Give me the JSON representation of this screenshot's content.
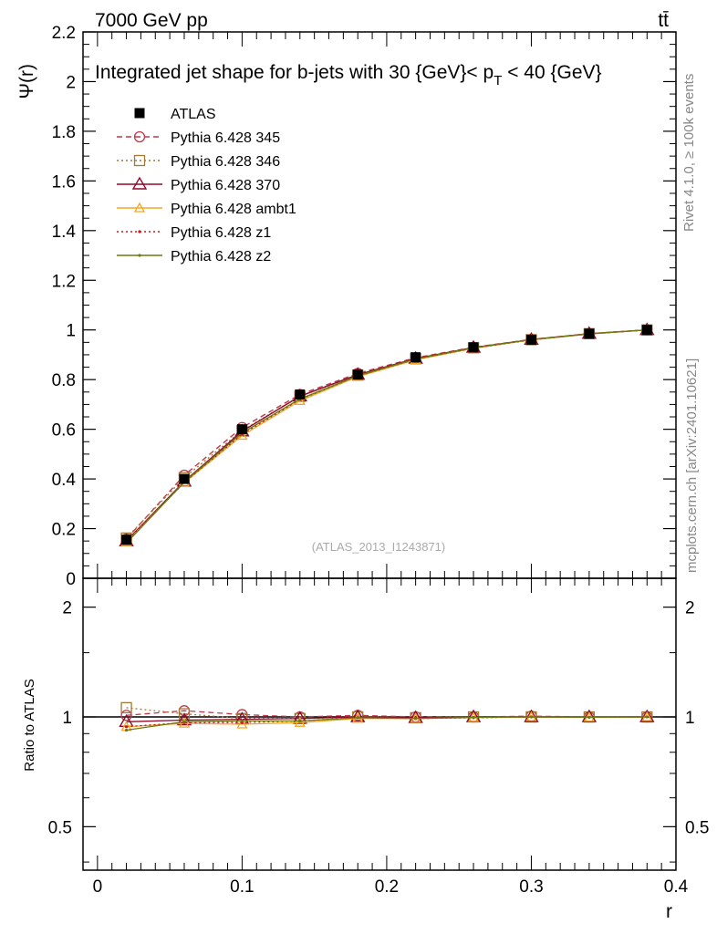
{
  "header": {
    "energy": "7000 GeV pp",
    "process": "tt̄",
    "side_top": "Rivet 4.1.0, ≥ 100k events",
    "side_bottom": "mcplots.cern.ch [arXiv:2401.10621]",
    "watermark": "(ATLAS_2013_I1243871)"
  },
  "colors": {
    "ATLAS": "#000000",
    "Pythia 6.428 345": "#c0394b",
    "Pythia 6.428 346": "#a07838",
    "Pythia 6.428 370": "#8b0a2a",
    "Pythia 6.428 ambt1": "#f5a623",
    "Pythia 6.428 z1": "#d0161c",
    "Pythia 6.428 z2": "#6b7a12"
  },
  "chart_data": [
    {
      "id": "main",
      "type": "line",
      "title": "Integrated jet shape for b-jets with 30 {GeV}< p_T < 40 {GeV}",
      "title_parts": {
        "pre": "Integrated jet shape for b-jets with 30 {GeV}< p",
        "sub": "T",
        "post": " < 40 {GeV}"
      },
      "ylabel": "Ψ(r)",
      "xlabel": "",
      "xlim": [
        -0.01,
        0.4
      ],
      "ylim": [
        0,
        2.2
      ],
      "yticks": [
        0,
        0.2,
        0.4,
        0.6,
        0.8,
        1,
        1.2,
        1.4,
        1.6,
        1.8,
        2,
        2.2
      ],
      "ytick_labels": [
        "0",
        "0.2",
        "0.4",
        "0.6",
        "0.8",
        "1",
        "1.2",
        "1.4",
        "1.6",
        "1.8",
        "2",
        "2.2"
      ],
      "x": [
        0.02,
        0.06,
        0.1,
        0.14,
        0.18,
        0.22,
        0.26,
        0.3,
        0.34,
        0.38
      ],
      "legend_position": "top-left",
      "series": [
        {
          "name": "ATLAS",
          "style": "data",
          "values": [
            0.155,
            0.4,
            0.6,
            0.74,
            0.82,
            0.89,
            0.93,
            0.96,
            0.985,
            1.0
          ]
        },
        {
          "name": "Pythia 6.428 345",
          "style": "dashed-circle",
          "values": [
            0.158,
            0.415,
            0.607,
            0.74,
            0.825,
            0.888,
            0.93,
            0.962,
            0.985,
            1.0
          ]
        },
        {
          "name": "Pythia 6.428 346",
          "style": "dotted-square",
          "values": [
            0.162,
            0.405,
            0.595,
            0.733,
            0.818,
            0.884,
            0.928,
            0.961,
            0.985,
            1.0
          ]
        },
        {
          "name": "Pythia 6.428 370",
          "style": "solid-triangle",
          "values": [
            0.15,
            0.39,
            0.592,
            0.733,
            0.82,
            0.885,
            0.929,
            0.961,
            0.985,
            1.0
          ]
        },
        {
          "name": "Pythia 6.428 ambt1",
          "style": "solid-triangle-open",
          "values": [
            0.146,
            0.385,
            0.575,
            0.715,
            0.812,
            0.88,
            0.926,
            0.96,
            0.984,
            1.0
          ]
        },
        {
          "name": "Pythia 6.428 z1",
          "style": "dotted-dot",
          "values": [
            0.146,
            0.386,
            0.58,
            0.72,
            0.815,
            0.882,
            0.927,
            0.96,
            0.984,
            1.0
          ]
        },
        {
          "name": "Pythia 6.428 z2",
          "style": "solid-dot",
          "values": [
            0.142,
            0.388,
            0.585,
            0.722,
            0.816,
            0.883,
            0.928,
            0.961,
            0.984,
            1.0
          ]
        }
      ]
    },
    {
      "id": "ratio",
      "type": "line",
      "title": "",
      "ylabel": "Ratio to ATLAS",
      "xlabel": "r",
      "xlim": [
        -0.01,
        0.4
      ],
      "ylim": [
        0.38,
        2.4
      ],
      "yscale": "log",
      "yticks": [
        0.5,
        1,
        2
      ],
      "ytick_labels": [
        "0.5",
        "1",
        "2"
      ],
      "xticks": [
        0,
        0.1,
        0.2,
        0.3,
        0.4
      ],
      "xtick_labels": [
        "0",
        "0.1",
        "0.2",
        "0.3",
        "0.4"
      ],
      "x": [
        0.02,
        0.06,
        0.1,
        0.14,
        0.18,
        0.22,
        0.26,
        0.3,
        0.34,
        0.38
      ],
      "series": [
        {
          "name": "Pythia 6.428 345",
          "values": [
            1.01,
            1.04,
            1.015,
            1.0,
            1.01,
            1.0,
            1.0,
            1.005,
            1.0,
            1.0
          ]
        },
        {
          "name": "Pythia 6.428 346",
          "values": [
            1.06,
            1.02,
            0.99,
            0.99,
            1.0,
            0.995,
            1.0,
            1.0,
            1.0,
            1.0
          ]
        },
        {
          "name": "Pythia 6.428 370",
          "values": [
            0.97,
            0.98,
            0.985,
            0.99,
            1.0,
            0.995,
            1.0,
            1.0,
            1.0,
            1.0
          ]
        },
        {
          "name": "Pythia 6.428 ambt1",
          "values": [
            0.94,
            0.96,
            0.955,
            0.965,
            0.99,
            0.99,
            0.995,
            1.0,
            0.998,
            1.0
          ]
        },
        {
          "name": "Pythia 6.428 z1",
          "values": [
            0.94,
            0.965,
            0.965,
            0.975,
            0.995,
            0.99,
            0.995,
            1.0,
            0.998,
            1.0
          ]
        },
        {
          "name": "Pythia 6.428 z2",
          "values": [
            0.92,
            0.97,
            0.975,
            0.975,
            0.995,
            0.99,
            0.997,
            1.0,
            0.998,
            1.0
          ]
        }
      ]
    }
  ]
}
